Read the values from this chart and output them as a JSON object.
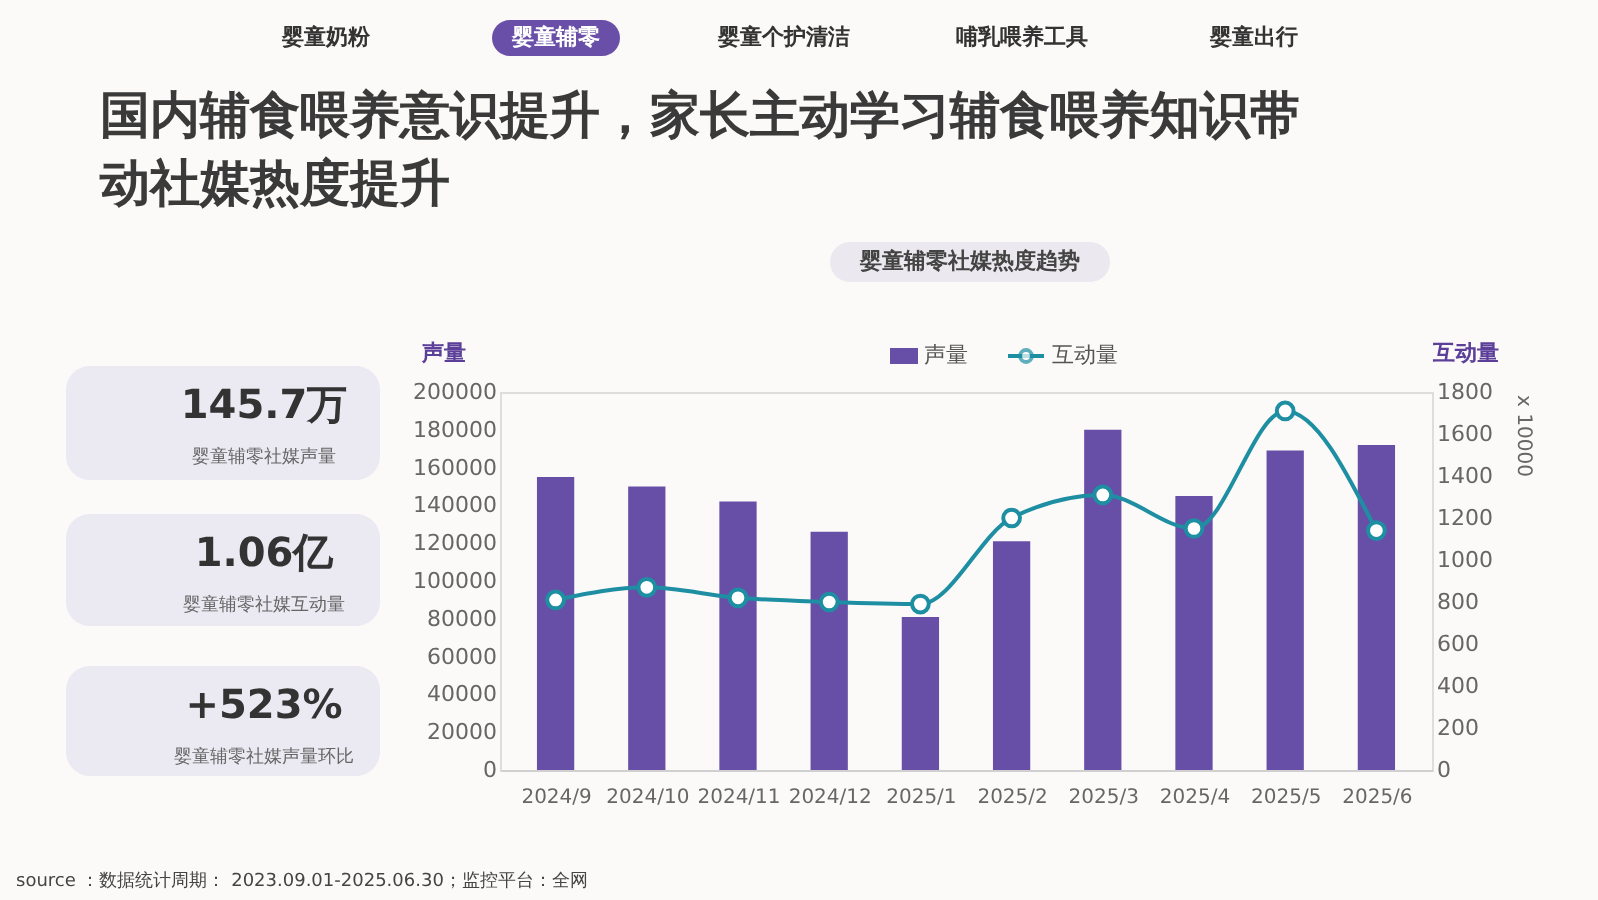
{
  "chart_data": {
    "type": "bar",
    "title": "国内辅食喂养意识提升，家长主动学习辅食喂养知识带动社媒热度提升",
    "subtitle": "婴童辅零社媒热度趋势",
    "ylabel": "声量",
    "y2label": "互动量",
    "categories": [
      "2024/9",
      "2024/10",
      "2024/11",
      "2024/12",
      "2025/1",
      "2025/2",
      "2025/3",
      "2025/4",
      "2025/5",
      "2025/6"
    ],
    "series": [
      {
        "name": "声量",
        "color": "#674ea7",
        "values": [
          155000,
          150000,
          142000,
          126000,
          81000,
          121000,
          180000,
          145000,
          169000,
          172000
        ]
      },
      {
        "name": "互动量",
        "type": "line",
        "axis": "y2",
        "color": "#1e8fa3",
        "values": [
          810,
          870,
          820,
          800,
          790,
          1200,
          1310,
          1150,
          1710,
          1140
        ]
      }
    ],
    "ylim": [
      0,
      200000
    ],
    "yticks": [
      0,
      20000,
      40000,
      60000,
      80000,
      100000,
      120000,
      140000,
      160000,
      180000,
      200000
    ],
    "y2lim": [
      0,
      1800
    ],
    "y2ticks": [
      0,
      200,
      400,
      600,
      800,
      1000,
      1200,
      1400,
      1600,
      1800
    ],
    "grid": false,
    "legend": "top",
    "marker": "circle",
    "line_style": "solid",
    "annotations": [
      "婴童奶粉",
      "婴童辅零",
      "婴童个护清洁",
      "哺乳喂养工具",
      "婴童出行",
      "145.7万",
      "婴童辅零社媒声量",
      "1.06亿",
      "婴童辅零社媒互动量",
      "+523%",
      "婴童辅零社媒声量环比",
      "x 10000",
      "source ：数据统计周期： 2023.09.01-2025.06.30；监控平台：全网"
    ]
  }
}
